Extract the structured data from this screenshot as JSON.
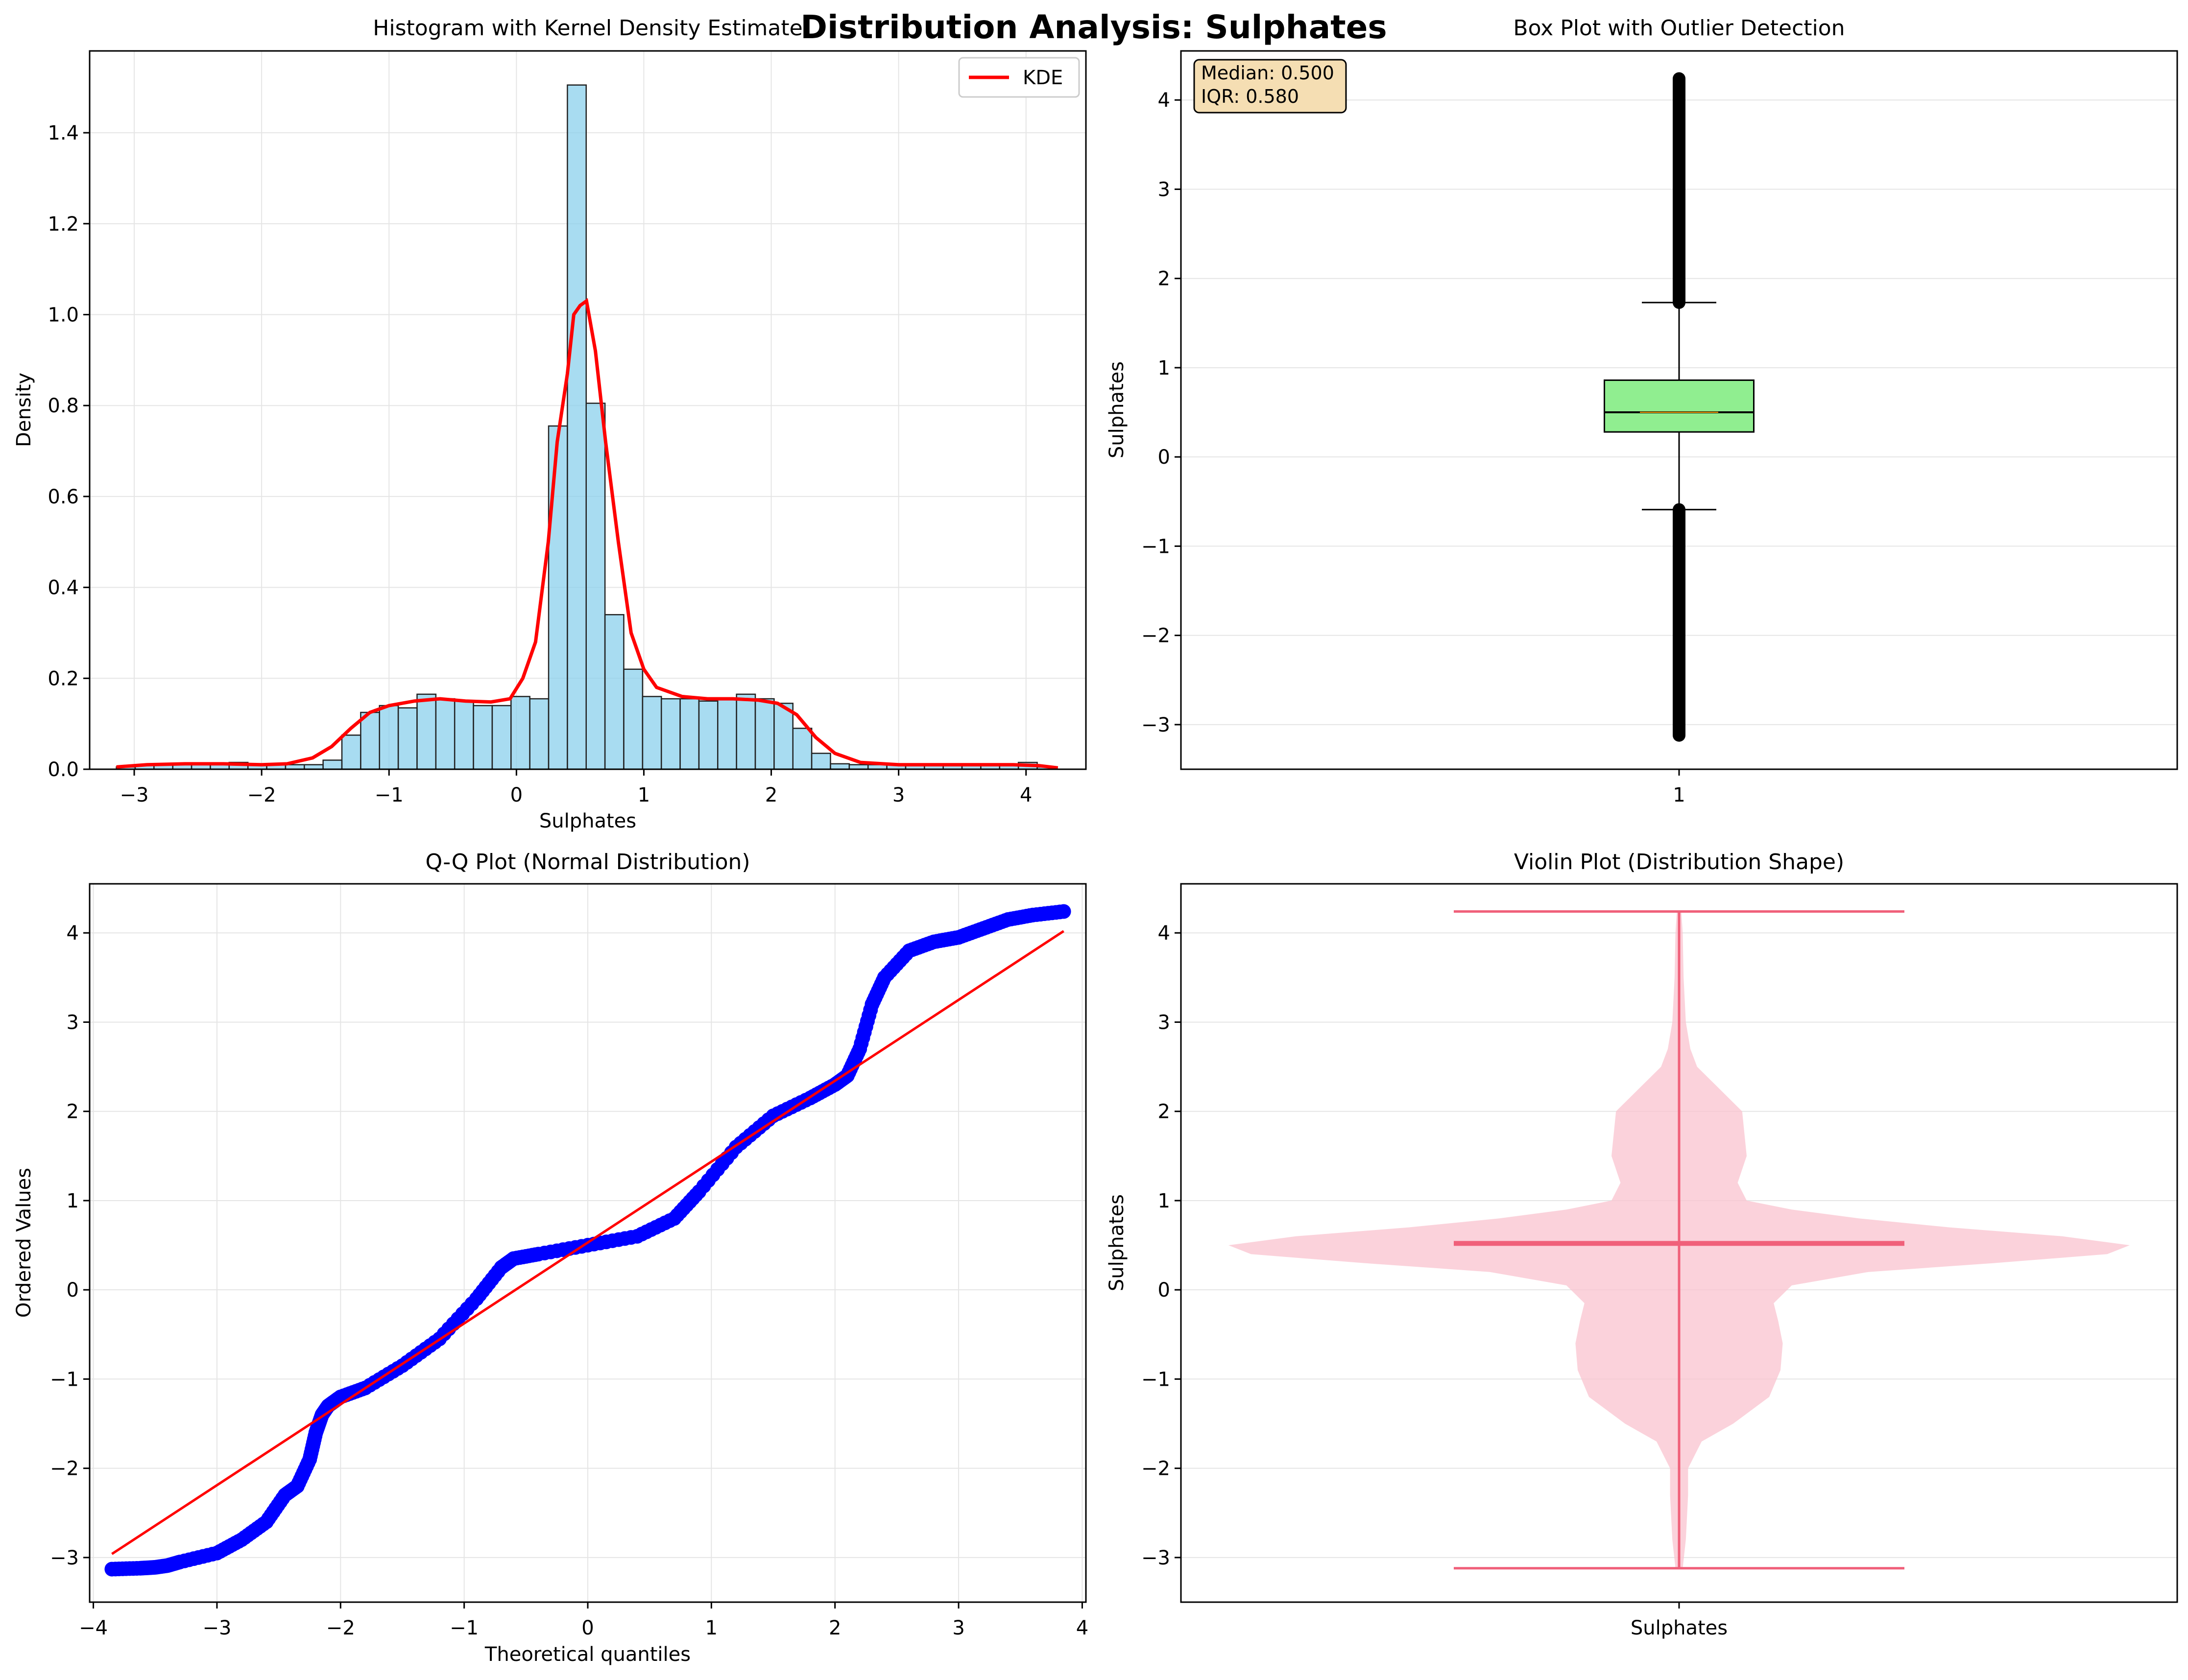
{
  "figure": {
    "suptitle": "Distribution Analysis: Sulphates"
  },
  "colors": {
    "hist_fill": "#87ceeb",
    "kde_line": "#ff0000",
    "box_fill": "#90ee90",
    "box_median": "#000000",
    "box_mean_line": "#ffa500",
    "annotation_bg": "#f5deb3",
    "qq_points": "#0000ff",
    "qq_line": "#ff0000",
    "violin_fill": "#f9c3cf",
    "violin_lines": "#f0607a",
    "grid": "#e5e5e5"
  },
  "chart_data": [
    {
      "type": "bar",
      "title": "Histogram with Kernel Density Estimate",
      "xlabel": "Sulphates",
      "ylabel": "Density",
      "xlim": [
        -3.35,
        4.47
      ],
      "ylim": [
        0,
        1.58
      ],
      "xticks": [
        -3,
        -2,
        -1,
        0,
        1,
        2,
        3,
        4
      ],
      "yticks": [
        0.0,
        0.2,
        0.4,
        0.6,
        0.8,
        1.0,
        1.2,
        1.4
      ],
      "ytick_labels": [
        "0.0",
        "0.2",
        "0.4",
        "0.6",
        "0.8",
        "1.0",
        "1.2",
        "1.4"
      ],
      "bin_start": -3.14,
      "bin_width": 0.1475,
      "bin_values": [
        0.005,
        0.01,
        0.01,
        0.01,
        0.01,
        0.01,
        0.015,
        0.01,
        0.01,
        0.01,
        0.01,
        0.02,
        0.075,
        0.125,
        0.14,
        0.135,
        0.165,
        0.155,
        0.15,
        0.14,
        0.14,
        0.16,
        0.155,
        0.755,
        1.505,
        0.805,
        0.34,
        0.22,
        0.16,
        0.155,
        0.155,
        0.15,
        0.155,
        0.165,
        0.155,
        0.145,
        0.09,
        0.035,
        0.012,
        0.01,
        0.01,
        0.01,
        0.01,
        0.01,
        0.01,
        0.01,
        0.01,
        0.01,
        0.015,
        0.005
      ],
      "kde": {
        "name": "KDE",
        "x": [
          -3.14,
          -2.9,
          -2.6,
          -2.3,
          -2.0,
          -1.8,
          -1.6,
          -1.45,
          -1.3,
          -1.15,
          -1.0,
          -0.8,
          -0.6,
          -0.4,
          -0.2,
          -0.05,
          0.05,
          0.15,
          0.25,
          0.32,
          0.4,
          0.45,
          0.5,
          0.55,
          0.62,
          0.7,
          0.8,
          0.9,
          1.0,
          1.1,
          1.3,
          1.5,
          1.7,
          1.9,
          2.05,
          2.2,
          2.35,
          2.5,
          2.7,
          3.0,
          3.3,
          3.6,
          3.9,
          4.1,
          4.25
        ],
        "y": [
          0.005,
          0.01,
          0.012,
          0.012,
          0.01,
          0.012,
          0.025,
          0.05,
          0.09,
          0.125,
          0.14,
          0.15,
          0.155,
          0.15,
          0.148,
          0.155,
          0.2,
          0.28,
          0.5,
          0.72,
          0.87,
          1.0,
          1.02,
          1.03,
          0.92,
          0.72,
          0.5,
          0.3,
          0.22,
          0.18,
          0.16,
          0.155,
          0.155,
          0.152,
          0.145,
          0.12,
          0.07,
          0.035,
          0.015,
          0.01,
          0.01,
          0.01,
          0.01,
          0.008,
          0.003
        ]
      },
      "legend": "top-right",
      "grid": true
    },
    {
      "type": "box",
      "title": "Box Plot with Outlier Detection",
      "ylabel": "Sulphates",
      "xtick_labels": [
        "1"
      ],
      "ylim": [
        -3.5,
        4.55
      ],
      "yticks": [
        -3,
        -2,
        -1,
        0,
        1,
        2,
        3,
        4
      ],
      "q1": 0.28,
      "median": 0.5,
      "q3": 0.86,
      "whisker_low": -0.59,
      "whisker_high": 1.73,
      "outliers_low": [
        -3.12,
        -0.59
      ],
      "outliers_high": [
        1.73,
        4.24
      ],
      "annotation": {
        "median_text": "Median: 0.500",
        "iqr_text": "IQR: 0.580"
      },
      "grid": true
    },
    {
      "type": "scatter",
      "title": "Q-Q Plot (Normal Distribution)",
      "xlabel": "Theoretical quantiles",
      "ylabel": "Ordered Values",
      "xlim": [
        -4.03,
        4.03
      ],
      "ylim": [
        -3.5,
        4.55
      ],
      "xticks": [
        -4,
        -3,
        -2,
        -1,
        0,
        1,
        2,
        3,
        4
      ],
      "yticks": [
        -3,
        -2,
        -1,
        0,
        1,
        2,
        3,
        4
      ],
      "points_x": [
        -3.85,
        -3.62,
        -3.5,
        -3.4,
        -3.3,
        -3.0,
        -2.8,
        -2.6,
        -2.45,
        -2.35,
        -2.25,
        -2.2,
        -2.15,
        -2.1,
        -2.0,
        -1.8,
        -1.5,
        -1.2,
        -0.9,
        -0.7,
        -0.6,
        -0.4,
        0.0,
        0.4,
        0.7,
        0.9,
        1.2,
        1.5,
        1.8,
        2.0,
        2.1,
        2.2,
        2.3,
        2.4,
        2.6,
        2.8,
        3.0,
        3.2,
        3.4,
        3.6,
        3.85
      ],
      "points_y": [
        -3.13,
        -3.12,
        -3.11,
        -3.09,
        -3.05,
        -2.95,
        -2.8,
        -2.6,
        -2.3,
        -2.2,
        -1.9,
        -1.6,
        -1.4,
        -1.3,
        -1.2,
        -1.1,
        -0.85,
        -0.55,
        -0.1,
        0.25,
        0.35,
        0.4,
        0.5,
        0.6,
        0.8,
        1.1,
        1.6,
        1.95,
        2.15,
        2.3,
        2.4,
        2.7,
        3.2,
        3.5,
        3.8,
        3.9,
        3.95,
        4.05,
        4.15,
        4.2,
        4.24
      ],
      "fit_line": {
        "x": [
          -3.85,
          3.85
        ],
        "y": [
          -2.96,
          4.02
        ]
      },
      "grid": true
    },
    {
      "type": "violin",
      "title": "Violin Plot (Distribution Shape)",
      "ylabel": "Sulphates",
      "xtick_labels": [
        "Sulphates"
      ],
      "ylim": [
        -3.5,
        4.55
      ],
      "yticks": [
        -3,
        -2,
        -1,
        0,
        1,
        2,
        3,
        4
      ],
      "min": -3.12,
      "max": 4.24,
      "mean": 0.52,
      "profile_y": [
        -3.12,
        -2.8,
        -2.3,
        -2.0,
        -1.7,
        -1.5,
        -1.2,
        -0.9,
        -0.6,
        -0.35,
        -0.15,
        0.05,
        0.2,
        0.3,
        0.4,
        0.5,
        0.6,
        0.7,
        0.8,
        0.9,
        1.0,
        1.2,
        1.5,
        2.0,
        2.3,
        2.5,
        2.7,
        3.0,
        3.5,
        4.0,
        4.24
      ],
      "profile_w": [
        0.008,
        0.015,
        0.02,
        0.02,
        0.05,
        0.12,
        0.2,
        0.225,
        0.23,
        0.22,
        0.21,
        0.25,
        0.42,
        0.7,
        0.95,
        1.0,
        0.85,
        0.6,
        0.4,
        0.25,
        0.15,
        0.13,
        0.15,
        0.14,
        0.08,
        0.04,
        0.025,
        0.015,
        0.01,
        0.008,
        0.005
      ],
      "grid": true
    }
  ]
}
